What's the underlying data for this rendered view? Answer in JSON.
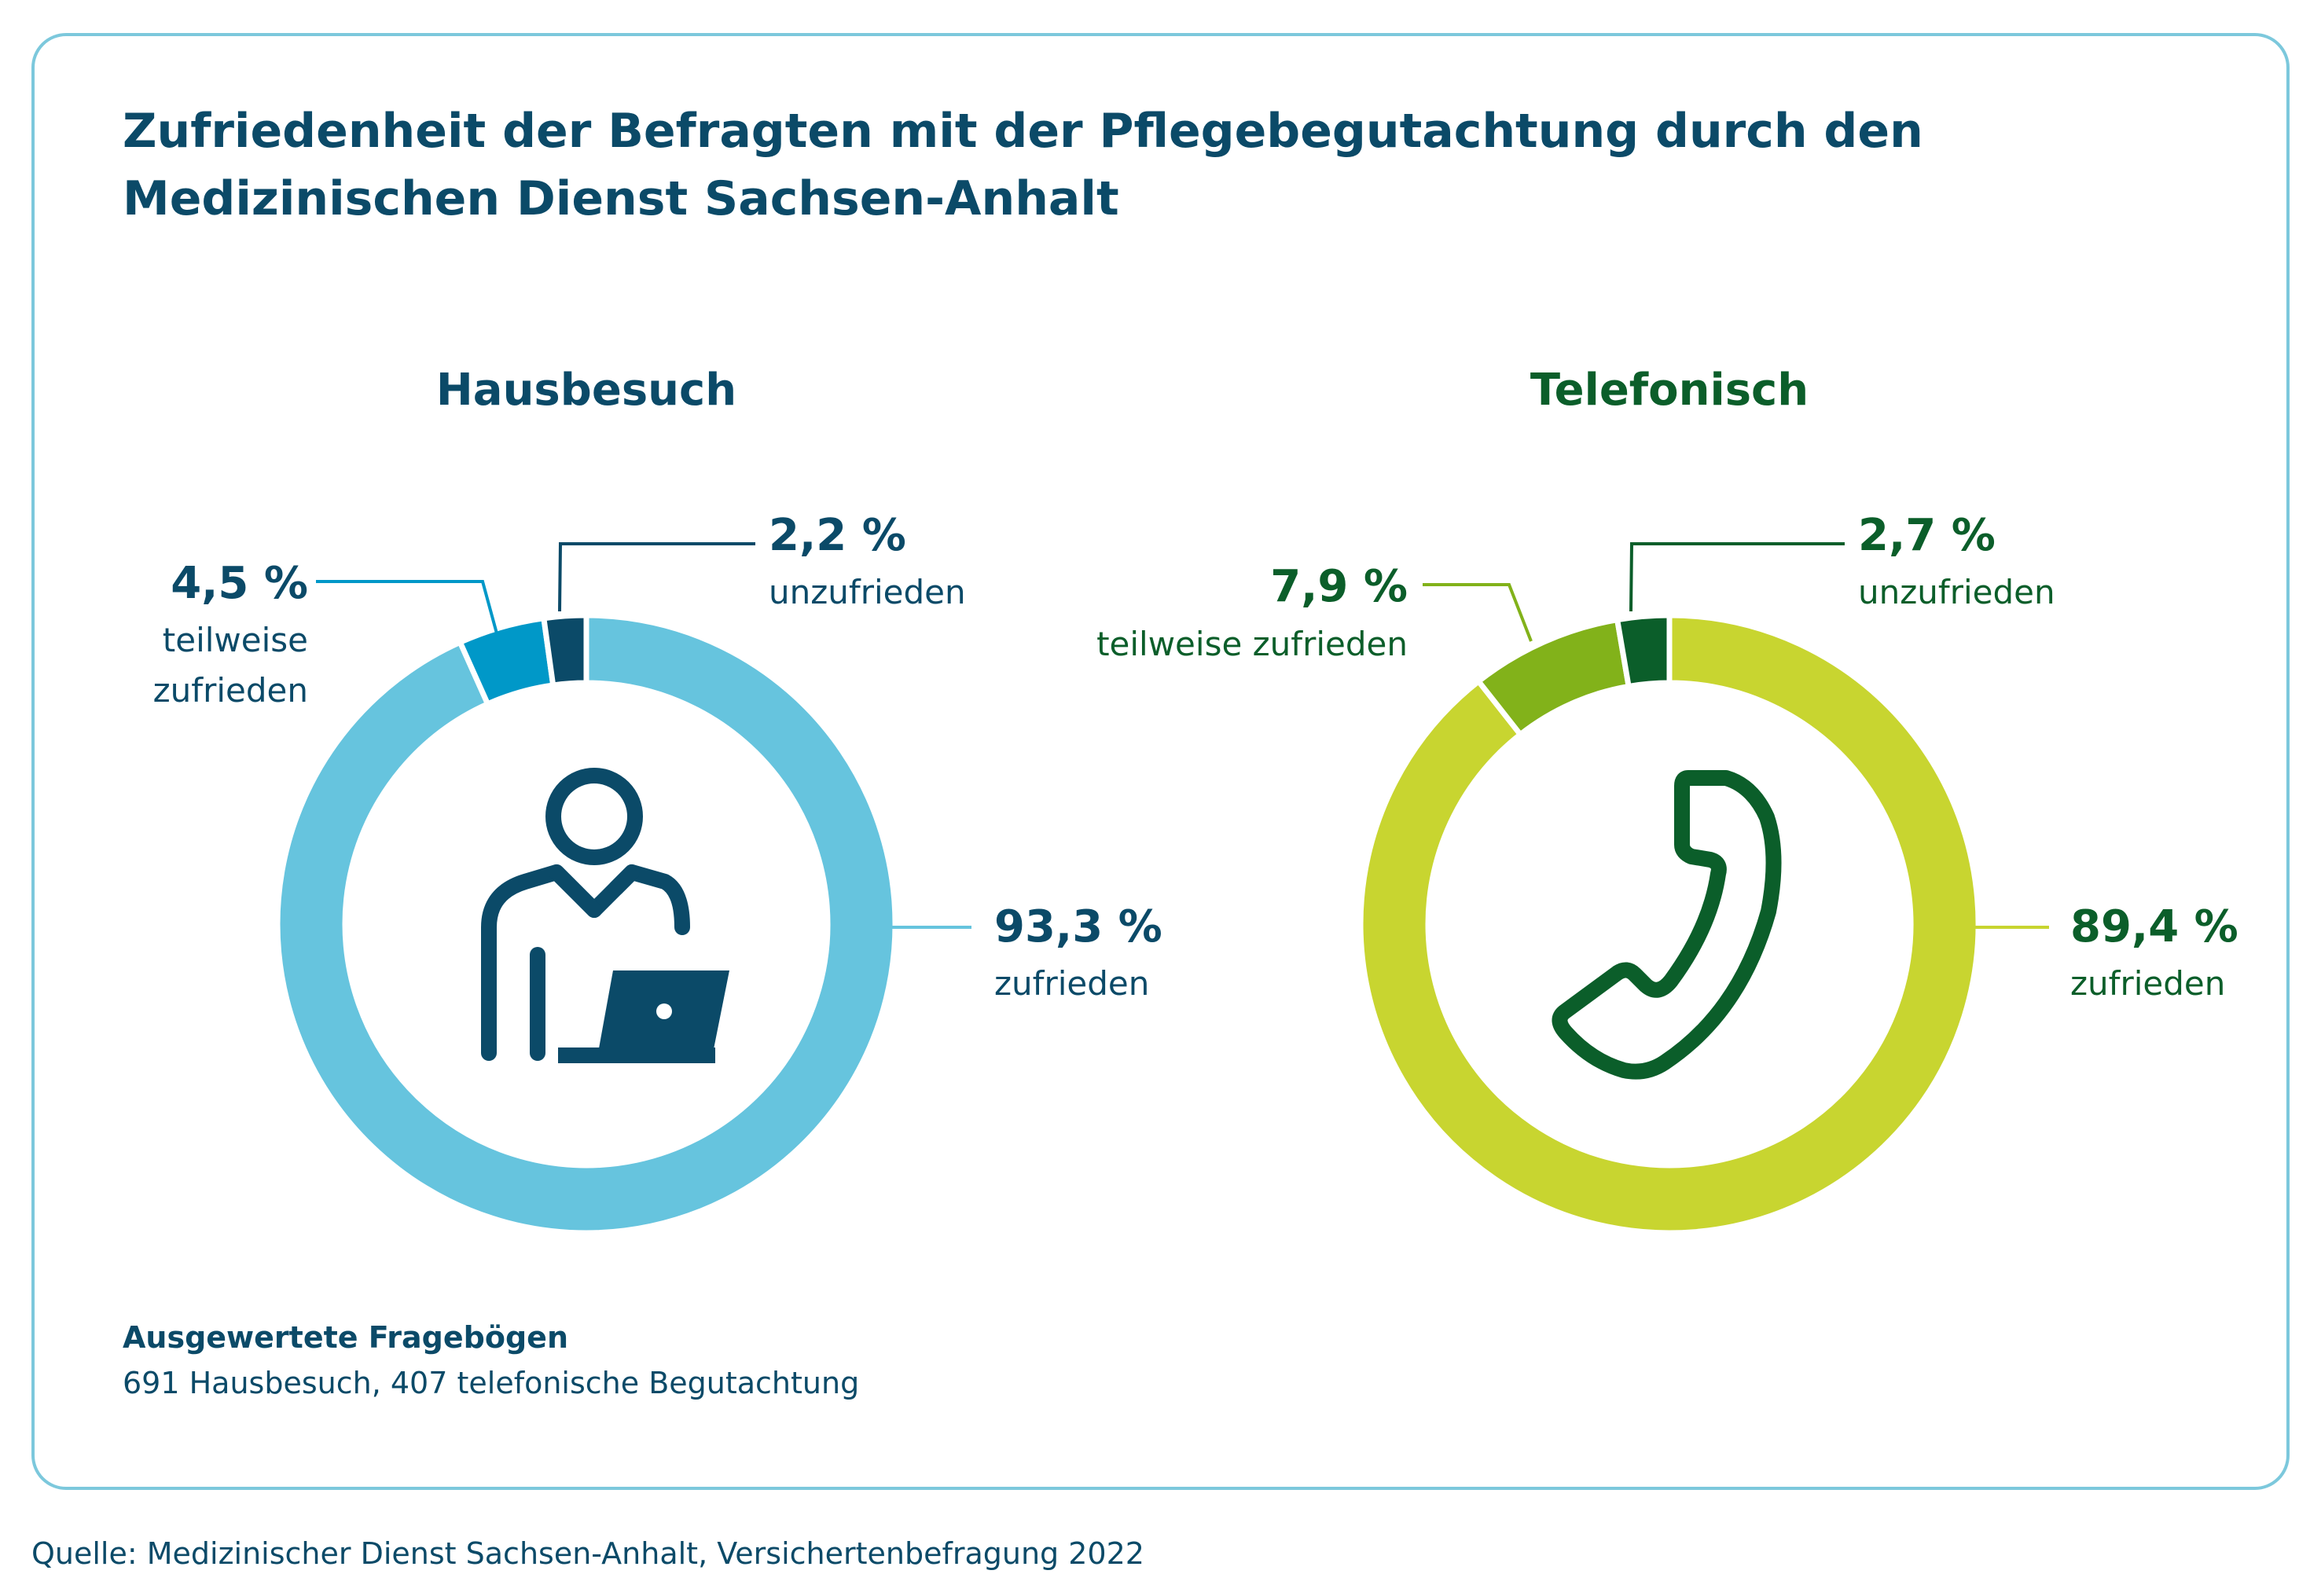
{
  "title_lines": [
    "Zufriedenheit der Befragten mit der Pflegebegutachtung durch den",
    "Medizinischen Dienst Sachsen-Anhalt"
  ],
  "chart_data": [
    {
      "type": "pie",
      "title": "Hausbesuch",
      "title_color": "#0b4a68",
      "icon": "person-laptop-icon",
      "categories": [
        "zufrieden",
        "teilweise zufrieden",
        "unzufrieden"
      ],
      "values": [
        93.3,
        4.5,
        2.2
      ],
      "value_labels": [
        "93,3 %",
        "4,5 %",
        "2,2 %"
      ],
      "category_labels": [
        [
          "zufrieden"
        ],
        [
          "teilweise",
          "zufrieden"
        ],
        [
          "unzufrieden"
        ]
      ],
      "colors": [
        "#66c4de",
        "#0098c8",
        "#0b4a68"
      ],
      "leader_colors": [
        "#66c4de",
        "#0098c8",
        "#0b4a68"
      ],
      "icon_color": "#0b4a68"
    },
    {
      "type": "pie",
      "title": "Telefonisch",
      "title_color": "#0b5e2a",
      "icon": "phone-icon",
      "categories": [
        "zufrieden",
        "teilweise zufrieden",
        "unzufrieden"
      ],
      "values": [
        89.4,
        7.9,
        2.7
      ],
      "value_labels": [
        "89,4 %",
        "7,9 %",
        "2,7 %"
      ],
      "category_labels": [
        [
          "zufrieden"
        ],
        [
          "teilweise zufrieden"
        ],
        [
          "unzufrieden"
        ]
      ],
      "colors": [
        "#c8d530",
        "#82b21a",
        "#0b5e2a"
      ],
      "leader_colors": [
        "#c8d530",
        "#82b21a",
        "#0b5e2a"
      ],
      "icon_color": "#0b5e2a"
    }
  ],
  "notes": {
    "heading": "Ausgewertete Fragebögen",
    "text": "691 Hausbesuch, 407 telefonische Begutachtung"
  },
  "source": "Quelle: Medizinischer Dienst Sachsen-Anhalt, Versichertenbefragung 2022"
}
